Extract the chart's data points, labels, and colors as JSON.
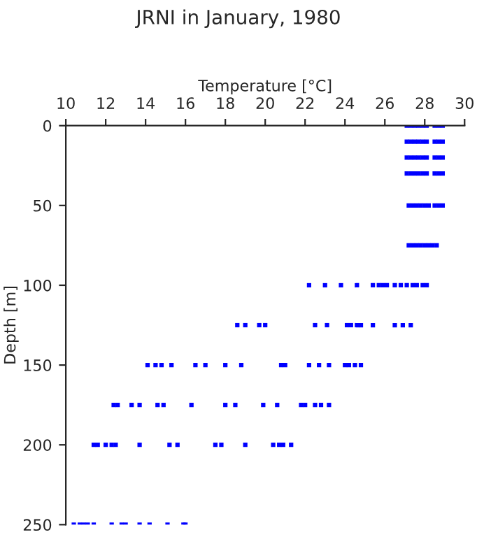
{
  "chart_data": {
    "type": "scatter",
    "title": "JRNI in January, 1980",
    "xlabel": "Temperature [°C]",
    "ylabel": "Depth [m]",
    "xlim": [
      10,
      30
    ],
    "xticks": [
      10,
      12,
      14,
      16,
      18,
      20,
      22,
      24,
      26,
      28,
      30
    ],
    "ylim": [
      250,
      0
    ],
    "yticks": [
      0,
      50,
      100,
      150,
      200,
      250
    ],
    "grid": false,
    "marker": "square",
    "tick_labels": "xy",
    "series": [
      {
        "color": "#0000ff",
        "x": [
          27.1,
          27.3,
          27.5,
          27.7,
          27.9,
          28.1,
          28.5,
          28.7,
          28.9,
          27.1,
          27.3,
          27.5,
          27.7,
          27.9,
          28.1,
          28.5,
          28.7,
          28.9,
          27.1,
          27.3,
          27.5,
          27.7,
          27.9,
          28.1,
          28.5,
          28.7,
          28.9,
          27.1,
          27.3,
          27.5,
          27.7,
          27.9,
          28.1,
          28.5,
          28.7,
          28.9,
          27.2,
          27.4,
          27.6,
          27.8,
          28.0,
          28.2,
          28.5,
          28.7,
          28.9,
          27.2,
          27.4,
          27.6,
          27.8,
          28.0,
          28.2,
          28.4,
          28.6,
          22.2,
          23.0,
          23.8,
          24.6,
          25.4,
          25.7,
          25.9,
          26.1,
          26.5,
          26.8,
          27.1,
          27.4,
          27.6,
          27.9,
          28.1,
          18.6,
          19.0,
          19.7,
          20.0,
          22.5,
          23.1,
          24.1,
          24.3,
          24.6,
          24.8,
          25.4,
          26.5,
          26.9,
          27.3,
          14.1,
          14.5,
          14.8,
          15.3,
          16.5,
          17.0,
          18.0,
          18.8,
          20.8,
          21.0,
          22.2,
          22.7,
          23.2,
          24.0,
          24.2,
          24.5,
          24.8,
          12.4,
          12.6,
          13.3,
          13.7,
          14.6,
          14.9,
          16.3,
          18.0,
          18.5,
          19.9,
          20.6,
          21.8,
          22.0,
          22.5,
          22.8,
          23.2,
          11.4,
          11.6,
          12.0,
          12.3,
          12.5,
          13.7,
          15.2,
          15.6,
          17.5,
          17.8,
          19.0,
          20.4,
          20.7,
          20.9,
          21.3,
          10.4,
          10.7,
          10.9,
          11.1,
          11.4,
          12.3,
          12.8,
          13.0,
          13.7,
          14.2,
          15.1,
          15.9,
          16.0
        ],
        "values": [
          0,
          0,
          0,
          0,
          0,
          0,
          0,
          0,
          0,
          10,
          10,
          10,
          10,
          10,
          10,
          10,
          10,
          10,
          20,
          20,
          20,
          20,
          20,
          20,
          20,
          20,
          20,
          30,
          30,
          30,
          30,
          30,
          30,
          30,
          30,
          30,
          50,
          50,
          50,
          50,
          50,
          50,
          50,
          50,
          50,
          75,
          75,
          75,
          75,
          75,
          75,
          75,
          75,
          100,
          100,
          100,
          100,
          100,
          100,
          100,
          100,
          100,
          100,
          100,
          100,
          100,
          100,
          100,
          125,
          125,
          125,
          125,
          125,
          125,
          125,
          125,
          125,
          125,
          125,
          125,
          125,
          125,
          150,
          150,
          150,
          150,
          150,
          150,
          150,
          150,
          150,
          150,
          150,
          150,
          150,
          150,
          150,
          150,
          150,
          175,
          175,
          175,
          175,
          175,
          175,
          175,
          175,
          175,
          175,
          175,
          175,
          175,
          175,
          175,
          175,
          200,
          200,
          200,
          200,
          200,
          200,
          200,
          200,
          200,
          200,
          200,
          200,
          200,
          200,
          200,
          250,
          250,
          250,
          250,
          250,
          250,
          250,
          250,
          250,
          250,
          250,
          250,
          250
        ]
      }
    ]
  }
}
